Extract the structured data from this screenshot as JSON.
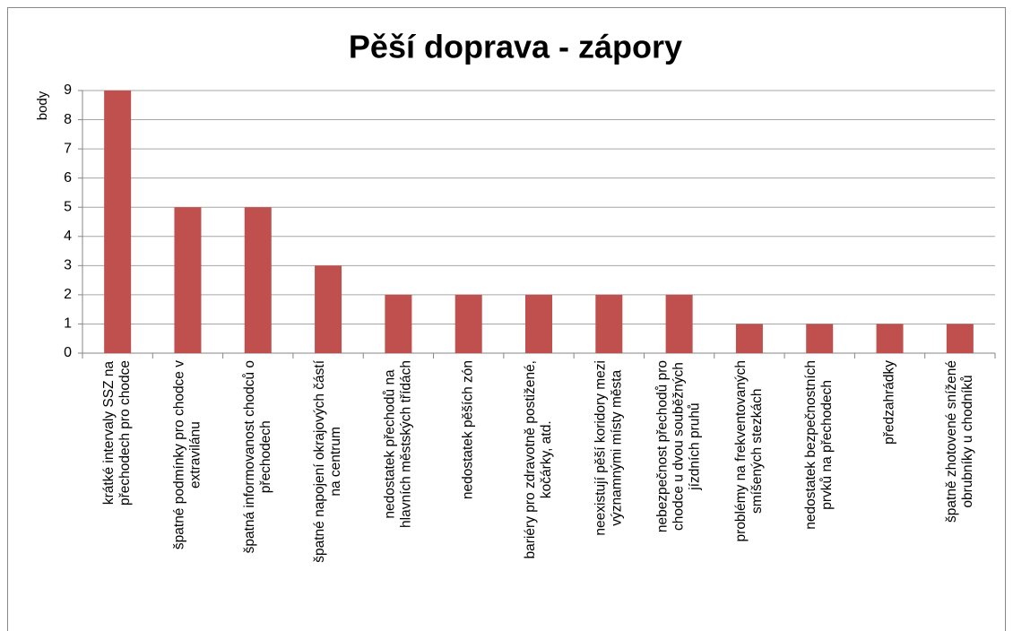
{
  "chart_data": {
    "type": "bar",
    "title": "Pěší doprava - zápory",
    "y_label": "body",
    "categories": [
      "krátké intervaly SSZ na\npřechodech pro chodce",
      "špatné podmínky pro chodce v\nextravilánu",
      "špatná informovanost chodců o\npřechodech",
      "špatné napojení okrajových částí\nna centrum",
      "nedostatek přechodů na\nhlavních městských třídách",
      "nedostatek pěších zón",
      "bariéry pro zdravotně postižené,\nkočárky, atd.",
      "neexistují pěší koridory mezi\nvýznamnými místy města",
      "nebezpečnost přechodů pro\nchodce u dvou souběžných\njízdních pruhů",
      "problémy na frekventovaných\nsmíšených stezkách",
      "nedostatek bezpečnostních\nprvků na přechodech",
      "předzahrádky",
      "špatně zhotovené snížené\nobrubníky u chodníků"
    ],
    "values": [
      9,
      5,
      5,
      3,
      2,
      2,
      2,
      2,
      2,
      1,
      1,
      1,
      1
    ],
    "color": "#c0504d",
    "ylim": [
      0,
      9
    ],
    "yticks": [
      0,
      1,
      2,
      3,
      4,
      5,
      6,
      7,
      8,
      9
    ],
    "grid": true
  }
}
